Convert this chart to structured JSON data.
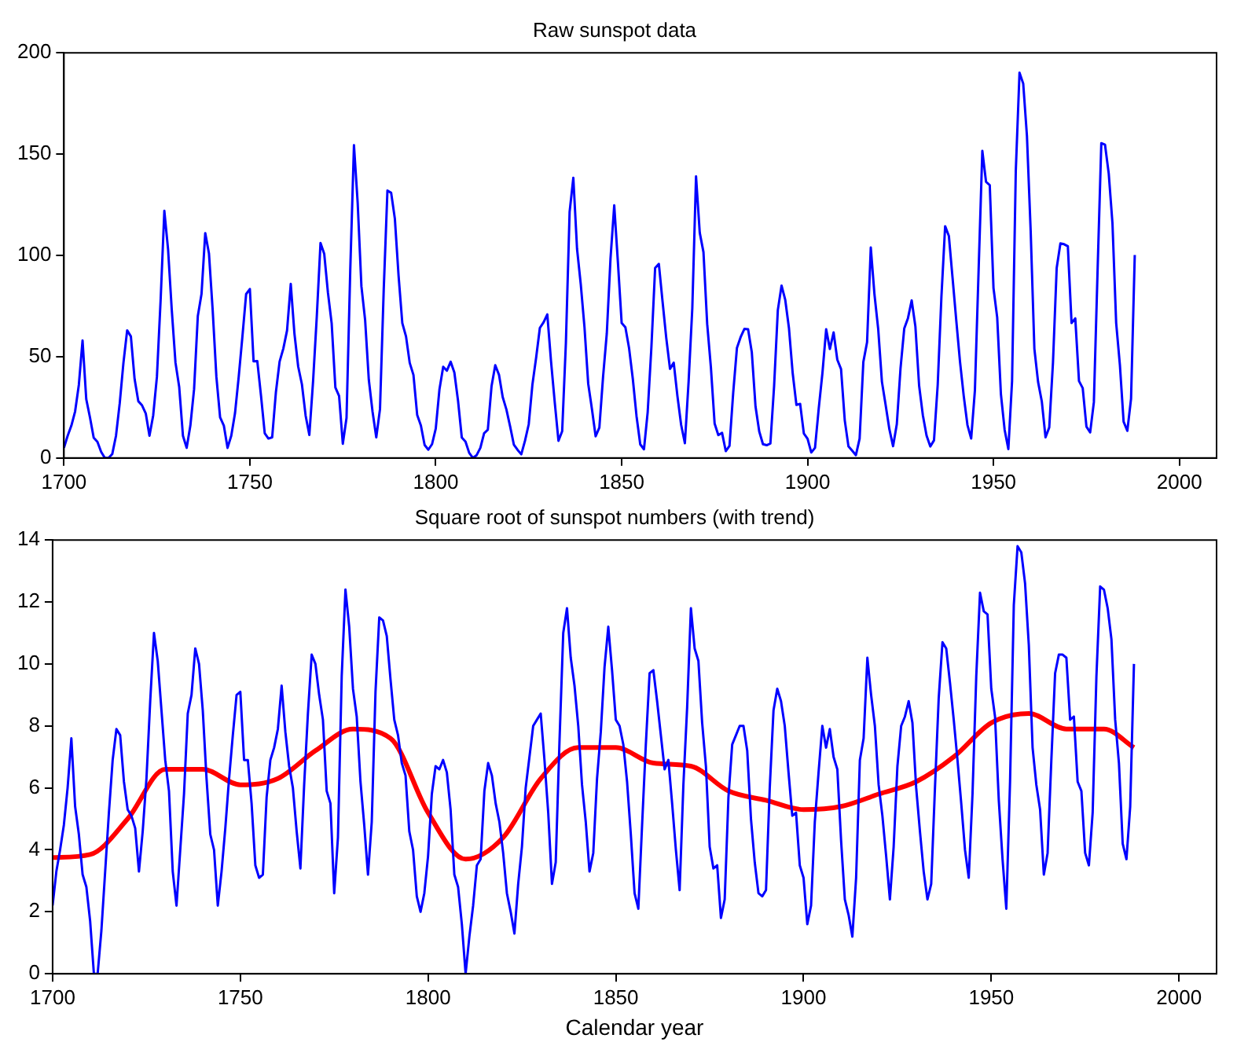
{
  "chart_data": [
    {
      "type": "line",
      "title": "Raw sunspot data",
      "x": [
        1700,
        1701,
        1702,
        1703,
        1704,
        1705,
        1706,
        1707,
        1708,
        1709,
        1710,
        1711,
        1712,
        1713,
        1714,
        1715,
        1716,
        1717,
        1718,
        1719,
        1720,
        1721,
        1722,
        1723,
        1724,
        1725,
        1726,
        1727,
        1728,
        1729,
        1730,
        1731,
        1732,
        1733,
        1734,
        1735,
        1736,
        1737,
        1738,
        1739,
        1740,
        1741,
        1742,
        1743,
        1744,
        1745,
        1746,
        1747,
        1748,
        1749,
        1750,
        1751,
        1752,
        1753,
        1754,
        1755,
        1756,
        1757,
        1758,
        1759,
        1760,
        1761,
        1762,
        1763,
        1764,
        1765,
        1766,
        1767,
        1768,
        1769,
        1770,
        1771,
        1772,
        1773,
        1774,
        1775,
        1776,
        1777,
        1778,
        1779,
        1780,
        1781,
        1782,
        1783,
        1784,
        1785,
        1786,
        1787,
        1788,
        1789,
        1790,
        1791,
        1792,
        1793,
        1794,
        1795,
        1796,
        1797,
        1798,
        1799,
        1800,
        1801,
        1802,
        1803,
        1804,
        1805,
        1806,
        1807,
        1808,
        1809,
        1810,
        1811,
        1812,
        1813,
        1814,
        1815,
        1816,
        1817,
        1818,
        1819,
        1820,
        1821,
        1822,
        1823,
        1824,
        1825,
        1826,
        1827,
        1828,
        1829,
        1830,
        1831,
        1832,
        1833,
        1834,
        1835,
        1836,
        1837,
        1838,
        1839,
        1840,
        1841,
        1842,
        1843,
        1844,
        1845,
        1846,
        1847,
        1848,
        1849,
        1850,
        1851,
        1852,
        1853,
        1854,
        1855,
        1856,
        1857,
        1858,
        1859,
        1860,
        1861,
        1862,
        1863,
        1864,
        1865,
        1866,
        1867,
        1868,
        1869,
        1870,
        1871,
        1872,
        1873,
        1874,
        1875,
        1876,
        1877,
        1878,
        1879,
        1880,
        1881,
        1882,
        1883,
        1884,
        1885,
        1886,
        1887,
        1888,
        1889,
        1890,
        1891,
        1892,
        1893,
        1894,
        1895,
        1896,
        1897,
        1898,
        1899,
        1900,
        1901,
        1902,
        1903,
        1904,
        1905,
        1906,
        1907,
        1908,
        1909,
        1910,
        1911,
        1912,
        1913,
        1914,
        1915,
        1916,
        1917,
        1918,
        1919,
        1920,
        1921,
        1922,
        1923,
        1924,
        1925,
        1926,
        1927,
        1928,
        1929,
        1930,
        1931,
        1932,
        1933,
        1934,
        1935,
        1936,
        1937,
        1938,
        1939,
        1940,
        1941,
        1942,
        1943,
        1944,
        1945,
        1946,
        1947,
        1948,
        1949,
        1950,
        1951,
        1952,
        1953,
        1954,
        1955,
        1956,
        1957,
        1958,
        1959,
        1960,
        1961,
        1962,
        1963,
        1964,
        1965,
        1966,
        1967,
        1968,
        1969,
        1970,
        1971,
        1972,
        1973,
        1974,
        1975,
        1976,
        1977,
        1978,
        1979,
        1980,
        1981,
        1982,
        1983,
        1984,
        1985,
        1986,
        1987,
        1988
      ],
      "series": [
        {
          "color": "#0000ff",
          "values": [
            5,
            11,
            16,
            23,
            36,
            58,
            29,
            20,
            10,
            8,
            3,
            0,
            0,
            2,
            11,
            27,
            47,
            63,
            60,
            39,
            28,
            26,
            22,
            11,
            21,
            40,
            78,
            122,
            103,
            73,
            47,
            35,
            11,
            5,
            16,
            34,
            70,
            81,
            111,
            101,
            73,
            40,
            20,
            16,
            5,
            11,
            22,
            40,
            60,
            80.9,
            83.4,
            47.7,
            47.8,
            30.7,
            12.2,
            9.6,
            10.2,
            32.4,
            47.6,
            54.0,
            62.9,
            85.9,
            61.2,
            45.1,
            36.4,
            20.9,
            11.4,
            37.8,
            69.8,
            106.1,
            100.8,
            81.6,
            66.5,
            34.8,
            30.6,
            7.0,
            19.8,
            92.5,
            154.4,
            125.9,
            84.8,
            68.1,
            38.5,
            22.8,
            10.2,
            24.1,
            82.9,
            132.0,
            130.9,
            118.1,
            89.9,
            66.6,
            60.0,
            46.9,
            41.0,
            21.3,
            16.0,
            6.4,
            4.1,
            6.8,
            14.5,
            34.0,
            45.0,
            43.1,
            47.5,
            42.2,
            28.1,
            10.1,
            8.1,
            2.5,
            0.0,
            1.4,
            5.0,
            12.2,
            13.9,
            35.4,
            45.8,
            41.1,
            30.1,
            23.9,
            15.6,
            6.6,
            4.0,
            1.8,
            8.5,
            16.6,
            36.3,
            49.6,
            64.2,
            67.0,
            70.9,
            47.8,
            27.5,
            8.5,
            13.2,
            56.9,
            121.5,
            138.3,
            103.2,
            85.7,
            64.6,
            36.7,
            24.2,
            10.7,
            15.0,
            40.1,
            61.5,
            98.5,
            124.7,
            96.3,
            66.6,
            64.5,
            54.1,
            39.0,
            20.6,
            6.7,
            4.3,
            22.7,
            54.8,
            93.8,
            95.8,
            77.2,
            59.1,
            44.0,
            47.0,
            30.5,
            16.3,
            7.3,
            37.6,
            74.0,
            139.0,
            111.2,
            101.6,
            66.2,
            44.7,
            17.0,
            11.3,
            12.4,
            3.4,
            6.0,
            32.3,
            54.3,
            59.7,
            63.7,
            63.5,
            52.2,
            25.4,
            13.1,
            6.8,
            6.3,
            7.1,
            35.6,
            73.0,
            85.1,
            78.0,
            64.0,
            41.8,
            26.2,
            26.7,
            12.1,
            9.5,
            2.7,
            5.0,
            24.4,
            42.0,
            63.5,
            53.8,
            62.0,
            48.5,
            43.9,
            18.6,
            5.7,
            3.6,
            1.4,
            9.6,
            47.4,
            57.1,
            103.9,
            80.6,
            63.6,
            37.6,
            26.1,
            14.2,
            5.8,
            16.7,
            44.3,
            63.9,
            69.0,
            77.8,
            64.9,
            35.7,
            21.2,
            11.1,
            5.7,
            8.7,
            36.1,
            79.7,
            114.4,
            109.6,
            88.8,
            67.8,
            47.5,
            30.6,
            16.3,
            9.6,
            33.2,
            92.6,
            151.6,
            136.3,
            134.7,
            83.9,
            69.4,
            31.5,
            13.9,
            4.4,
            38.0,
            141.7,
            190.2,
            184.8,
            159.0,
            112.3,
            53.9,
            37.5,
            27.9,
            10.2,
            15.1,
            47.0,
            93.8,
            105.9,
            105.5,
            104.5,
            66.6,
            68.9,
            38.0,
            34.5,
            15.5,
            12.6,
            27.5,
            92.5,
            155.4,
            154.6,
            140.4,
            115.9,
            66.6,
            45.9,
            17.9,
            13.4,
            29.2,
            100.2
          ]
        }
      ],
      "xlim": [
        1700,
        2010
      ],
      "xticks": [
        1700,
        1750,
        1800,
        1850,
        1900,
        1950,
        2000
      ],
      "ylim": [
        0,
        200
      ],
      "yticks": [
        0,
        50,
        100,
        150,
        200
      ],
      "grid": false,
      "legend": false
    },
    {
      "type": "line",
      "title": "Square root of sunspot numbers (with trend)",
      "xlabel": "Calendar year",
      "x": [
        1700,
        1701,
        1702,
        1703,
        1704,
        1705,
        1706,
        1707,
        1708,
        1709,
        1710,
        1711,
        1712,
        1713,
        1714,
        1715,
        1716,
        1717,
        1718,
        1719,
        1720,
        1721,
        1722,
        1723,
        1724,
        1725,
        1726,
        1727,
        1728,
        1729,
        1730,
        1731,
        1732,
        1733,
        1734,
        1735,
        1736,
        1737,
        1738,
        1739,
        1740,
        1741,
        1742,
        1743,
        1744,
        1745,
        1746,
        1747,
        1748,
        1749,
        1750,
        1751,
        1752,
        1753,
        1754,
        1755,
        1756,
        1757,
        1758,
        1759,
        1760,
        1761,
        1762,
        1763,
        1764,
        1765,
        1766,
        1767,
        1768,
        1769,
        1770,
        1771,
        1772,
        1773,
        1774,
        1775,
        1776,
        1777,
        1778,
        1779,
        1780,
        1781,
        1782,
        1783,
        1784,
        1785,
        1786,
        1787,
        1788,
        1789,
        1790,
        1791,
        1792,
        1793,
        1794,
        1795,
        1796,
        1797,
        1798,
        1799,
        1800,
        1801,
        1802,
        1803,
        1804,
        1805,
        1806,
        1807,
        1808,
        1809,
        1810,
        1811,
        1812,
        1813,
        1814,
        1815,
        1816,
        1817,
        1818,
        1819,
        1820,
        1821,
        1822,
        1823,
        1824,
        1825,
        1826,
        1827,
        1828,
        1829,
        1830,
        1831,
        1832,
        1833,
        1834,
        1835,
        1836,
        1837,
        1838,
        1839,
        1840,
        1841,
        1842,
        1843,
        1844,
        1845,
        1846,
        1847,
        1848,
        1849,
        1850,
        1851,
        1852,
        1853,
        1854,
        1855,
        1856,
        1857,
        1858,
        1859,
        1860,
        1861,
        1862,
        1863,
        1864,
        1865,
        1866,
        1867,
        1868,
        1869,
        1870,
        1871,
        1872,
        1873,
        1874,
        1875,
        1876,
        1877,
        1878,
        1879,
        1880,
        1881,
        1882,
        1883,
        1884,
        1885,
        1886,
        1887,
        1888,
        1889,
        1890,
        1891,
        1892,
        1893,
        1894,
        1895,
        1896,
        1897,
        1898,
        1899,
        1900,
        1901,
        1902,
        1903,
        1904,
        1905,
        1906,
        1907,
        1908,
        1909,
        1910,
        1911,
        1912,
        1913,
        1914,
        1915,
        1916,
        1917,
        1918,
        1919,
        1920,
        1921,
        1922,
        1923,
        1924,
        1925,
        1926,
        1927,
        1928,
        1929,
        1930,
        1931,
        1932,
        1933,
        1934,
        1935,
        1936,
        1937,
        1938,
        1939,
        1940,
        1941,
        1942,
        1943,
        1944,
        1945,
        1946,
        1947,
        1948,
        1949,
        1950,
        1951,
        1952,
        1953,
        1954,
        1955,
        1956,
        1957,
        1958,
        1959,
        1960,
        1961,
        1962,
        1963,
        1964,
        1965,
        1966,
        1967,
        1968,
        1969,
        1970,
        1971,
        1972,
        1973,
        1974,
        1975,
        1976,
        1977,
        1978,
        1979,
        1980,
        1981,
        1982,
        1983,
        1984,
        1985,
        1986,
        1987,
        1988
      ],
      "series": [
        {
          "color": "#0000ff",
          "values": [
            2.2,
            3.3,
            4.0,
            4.8,
            6.0,
            7.6,
            5.4,
            4.5,
            3.2,
            2.8,
            1.7,
            0,
            0,
            1.4,
            3.3,
            5.2,
            6.9,
            7.9,
            7.7,
            6.2,
            5.3,
            5.1,
            4.7,
            3.3,
            4.6,
            6.3,
            8.8,
            11.0,
            10.1,
            8.5,
            6.9,
            5.9,
            3.3,
            2.2,
            4.0,
            5.8,
            8.4,
            9.0,
            10.5,
            10.0,
            8.5,
            6.3,
            4.5,
            4.0,
            2.2,
            3.3,
            4.7,
            6.3,
            7.7,
            9.0,
            9.1,
            6.9,
            6.9,
            5.5,
            3.5,
            3.1,
            3.2,
            5.7,
            6.9,
            7.3,
            7.9,
            9.3,
            7.8,
            6.7,
            6.0,
            4.6,
            3.4,
            6.1,
            8.4,
            10.3,
            10.0,
            9.0,
            8.2,
            5.9,
            5.5,
            2.6,
            4.4,
            9.6,
            12.4,
            11.2,
            9.2,
            8.3,
            6.2,
            4.8,
            3.2,
            4.9,
            9.1,
            11.5,
            11.4,
            10.9,
            9.5,
            8.2,
            7.7,
            6.8,
            6.4,
            4.6,
            4.0,
            2.5,
            2.0,
            2.6,
            3.8,
            5.8,
            6.7,
            6.6,
            6.9,
            6.5,
            5.3,
            3.2,
            2.8,
            1.6,
            0,
            1.2,
            2.2,
            3.5,
            3.7,
            5.9,
            6.8,
            6.4,
            5.5,
            4.9,
            3.9,
            2.6,
            2.0,
            1.3,
            2.9,
            4.1,
            6.0,
            7.0,
            8.0,
            8.2,
            8.4,
            6.9,
            5.2,
            2.9,
            3.6,
            7.5,
            11.0,
            11.8,
            10.2,
            9.3,
            8.0,
            6.1,
            4.9,
            3.3,
            3.9,
            6.3,
            7.8,
            9.9,
            11.2,
            9.8,
            8.2,
            8.0,
            7.4,
            6.2,
            4.5,
            2.6,
            2.1,
            4.8,
            7.4,
            9.7,
            9.8,
            8.8,
            7.7,
            6.6,
            6.9,
            5.5,
            4.0,
            2.7,
            6.1,
            8.6,
            11.8,
            10.5,
            10.1,
            8.1,
            6.7,
            4.1,
            3.4,
            3.5,
            1.8,
            2.4,
            5.7,
            7.4,
            7.7,
            8.0,
            8.0,
            7.2,
            5.0,
            3.6,
            2.6,
            2.5,
            2.7,
            6.0,
            8.5,
            9.2,
            8.8,
            8.0,
            6.5,
            5.1,
            5.2,
            3.5,
            3.1,
            1.6,
            2.2,
            4.9,
            6.5,
            8.0,
            7.3,
            7.9,
            7.0,
            6.6,
            4.3,
            2.4,
            1.9,
            1.2,
            3.1,
            6.9,
            7.6,
            10.2,
            9.0,
            8.0,
            6.1,
            5.1,
            3.8,
            2.4,
            4.1,
            6.7,
            8.0,
            8.3,
            8.8,
            8.1,
            6.0,
            4.6,
            3.3,
            2.4,
            2.9,
            6.0,
            8.9,
            10.7,
            10.5,
            9.4,
            8.2,
            6.9,
            5.5,
            4.0,
            3.1,
            5.8,
            9.6,
            12.3,
            11.7,
            11.6,
            9.2,
            8.3,
            5.6,
            3.7,
            2.1,
            6.2,
            11.9,
            13.8,
            13.6,
            12.6,
            10.6,
            7.3,
            6.1,
            5.3,
            3.2,
            3.9,
            6.9,
            9.7,
            10.3,
            10.3,
            10.2,
            8.2,
            8.3,
            6.2,
            5.9,
            3.9,
            3.5,
            5.2,
            9.6,
            12.5,
            12.4,
            11.8,
            10.8,
            8.2,
            6.8,
            4.2,
            3.7,
            5.4,
            10.0
          ]
        },
        {
          "color": "#ff0000",
          "x": [
            1700,
            1710,
            1720,
            1730,
            1740,
            1750,
            1760,
            1770,
            1780,
            1790,
            1800,
            1810,
            1820,
            1830,
            1840,
            1850,
            1860,
            1870,
            1880,
            1890,
            1900,
            1910,
            1920,
            1930,
            1940,
            1950,
            1960,
            1970,
            1980,
            1988
          ],
          "values": [
            3.75,
            3.85,
            5.0,
            6.6,
            6.6,
            6.1,
            6.3,
            7.2,
            7.9,
            7.6,
            5.2,
            3.7,
            4.4,
            6.3,
            7.3,
            7.3,
            6.8,
            6.7,
            5.9,
            5.6,
            5.3,
            5.4,
            5.8,
            6.2,
            7.0,
            8.1,
            8.4,
            7.9,
            7.9,
            7.3
          ]
        }
      ],
      "xlim": [
        1700,
        2010
      ],
      "xticks": [
        1700,
        1750,
        1800,
        1850,
        1900,
        1950,
        2000
      ],
      "ylim": [
        0,
        14
      ],
      "yticks": [
        0,
        2,
        4,
        6,
        8,
        10,
        12,
        14
      ],
      "grid": false,
      "legend": false
    }
  ]
}
